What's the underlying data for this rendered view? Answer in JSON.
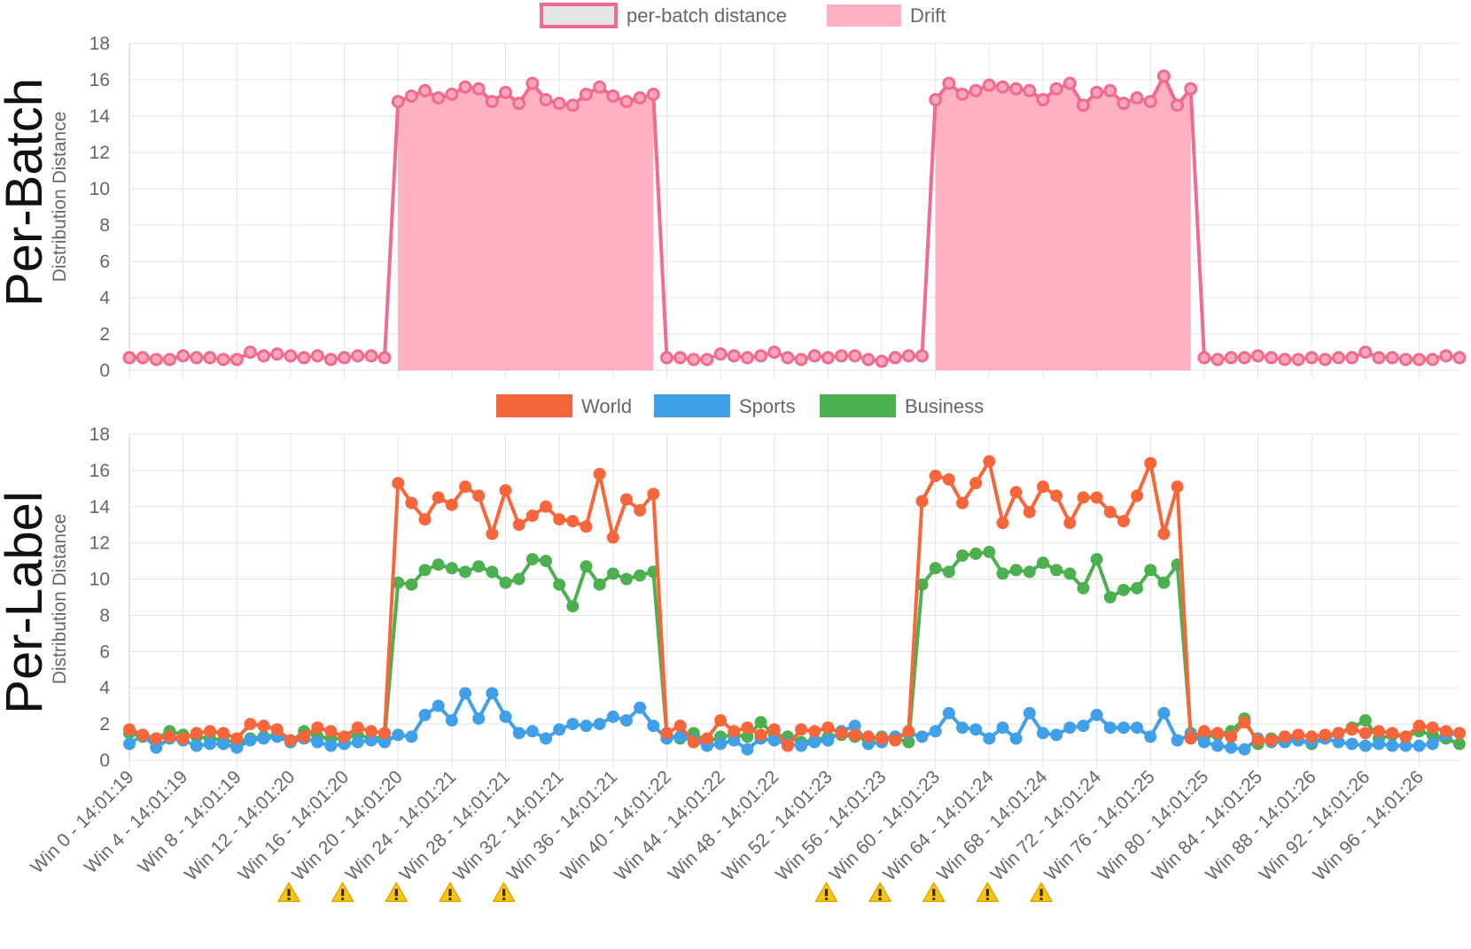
{
  "colors": {
    "distance_line": "#f06b8e",
    "drift_fill": "#ffb1c4",
    "distance_legend_fill": "#e6e6e6",
    "world": "#f7663a",
    "sports": "#3fa0e8",
    "business": "#4caf50",
    "warning": "#f5c518"
  },
  "icons": {
    "warning": "warning-icon"
  },
  "chart_data": [
    {
      "type": "line",
      "title": "",
      "side_label": "Per-Batch",
      "ylabel": "Distribution Distance",
      "ylim": [
        0,
        18
      ],
      "yticks": [
        0,
        2,
        4,
        6,
        8,
        10,
        12,
        14,
        16,
        18
      ],
      "legend_position": "top-center",
      "grid": true,
      "series": [
        {
          "name": "per-batch distance",
          "values": [
            0.7,
            0.7,
            0.6,
            0.6,
            0.8,
            0.7,
            0.7,
            0.6,
            0.6,
            1.0,
            0.8,
            0.9,
            0.8,
            0.7,
            0.8,
            0.6,
            0.7,
            0.8,
            0.8,
            0.7,
            14.8,
            15.1,
            15.4,
            15.0,
            15.2,
            15.6,
            15.5,
            14.8,
            15.3,
            14.7,
            15.8,
            14.9,
            14.7,
            14.6,
            15.2,
            15.6,
            15.1,
            14.8,
            15.0,
            15.2,
            0.7,
            0.7,
            0.6,
            0.6,
            0.9,
            0.8,
            0.7,
            0.8,
            1.0,
            0.7,
            0.6,
            0.8,
            0.7,
            0.8,
            0.8,
            0.6,
            0.5,
            0.7,
            0.8,
            0.8,
            14.9,
            15.8,
            15.2,
            15.4,
            15.7,
            15.6,
            15.5,
            15.4,
            14.9,
            15.5,
            15.8,
            14.6,
            15.3,
            15.4,
            14.7,
            15.0,
            14.8,
            16.2,
            14.6,
            15.5,
            0.7,
            0.6,
            0.7,
            0.7,
            0.8,
            0.7,
            0.6,
            0.6,
            0.7,
            0.6,
            0.7,
            0.7,
            1.0,
            0.7,
            0.7,
            0.6,
            0.6,
            0.6,
            0.8,
            0.7
          ]
        },
        {
          "name": "Drift",
          "ranges": [
            [
              20,
              39
            ],
            [
              60,
              79
            ]
          ]
        }
      ]
    },
    {
      "type": "line",
      "title": "",
      "side_label": "Per-Label",
      "ylabel": "Distribution Distance",
      "ylim": [
        0,
        18
      ],
      "yticks": [
        0,
        2,
        4,
        6,
        8,
        10,
        12,
        14,
        16,
        18
      ],
      "legend_position": "top-center",
      "grid": true,
      "x_tick_labels": [
        "Win 0 - 14:01:19",
        "Win 4 - 14:01:19",
        "Win 8 - 14:01:19",
        "Win 12 - 14:01:20",
        "Win 16 - 14:01:20",
        "Win 20 - 14:01:20",
        "Win 24 - 14:01:21",
        "Win 28 - 14:01:21",
        "Win 32 - 14:01:21",
        "Win 36 - 14:01:21",
        "Win 40 - 14:01:22",
        "Win 44 - 14:01:22",
        "Win 48 - 14:01:22",
        "Win 52 - 14:01:23",
        "Win 56 - 14:01:23",
        "Win 60 - 14:01:23",
        "Win 64 - 14:01:24",
        "Win 68 - 14:01:24",
        "Win 72 - 14:01:24",
        "Win 76 - 14:01:25",
        "Win 80 - 14:01:25",
        "Win 84 - 14:01:25",
        "Win 88 - 14:01:26",
        "Win 92 - 14:01:26",
        "Win 96 - 14:01:26"
      ],
      "warning_ticks": [
        "Win 20 - 14:01:20",
        "Win 24 - 14:01:21",
        "Win 28 - 14:01:21",
        "Win 32 - 14:01:21",
        "Win 36 - 14:01:21",
        "Win 60 - 14:01:23",
        "Win 64 - 14:01:24",
        "Win 68 - 14:01:24",
        "Win 72 - 14:01:24",
        "Win 76 - 14:01:25"
      ],
      "series": [
        {
          "name": "World",
          "values": [
            1.7,
            1.4,
            1.2,
            1.3,
            1.2,
            1.5,
            1.6,
            1.5,
            1.2,
            2.0,
            1.9,
            1.7,
            1.1,
            1.3,
            1.8,
            1.6,
            1.3,
            1.8,
            1.6,
            1.5,
            15.3,
            14.2,
            13.3,
            14.5,
            14.1,
            15.1,
            14.6,
            12.5,
            14.9,
            13.0,
            13.5,
            14.0,
            13.3,
            13.2,
            12.9,
            15.8,
            12.3,
            14.4,
            13.8,
            14.7,
            1.5,
            1.9,
            1.0,
            1.2,
            2.2,
            1.6,
            1.8,
            1.4,
            1.7,
            0.8,
            1.7,
            1.6,
            1.8,
            1.5,
            1.4,
            1.3,
            1.2,
            1.1,
            1.6,
            14.3,
            15.7,
            15.5,
            14.2,
            15.3,
            16.5,
            13.1,
            14.8,
            13.7,
            15.1,
            14.6,
            13.1,
            14.5,
            14.5,
            13.7,
            13.2,
            14.6,
            16.4,
            12.5,
            15.1,
            1.2,
            1.6,
            1.5,
            1.3,
            2.1,
            1.1,
            1.1,
            1.3,
            1.4,
            1.3,
            1.4,
            1.5,
            1.7,
            1.5,
            1.6,
            1.5,
            1.3,
            1.9,
            1.8,
            1.6,
            1.5
          ]
        },
        {
          "name": "Sports",
          "values": [
            0.9,
            1.4,
            0.7,
            1.2,
            1.1,
            0.8,
            0.9,
            0.9,
            0.7,
            1.1,
            1.2,
            1.3,
            1.0,
            1.2,
            1.0,
            0.8,
            0.9,
            1.0,
            1.1,
            1.0,
            1.4,
            1.3,
            2.5,
            3.0,
            2.2,
            3.7,
            2.3,
            3.7,
            2.4,
            1.5,
            1.6,
            1.2,
            1.7,
            2.0,
            1.9,
            2.0,
            2.4,
            2.2,
            2.9,
            1.9,
            1.2,
            1.3,
            1.1,
            0.8,
            0.9,
            1.1,
            0.6,
            1.2,
            1.1,
            0.9,
            0.8,
            1.0,
            1.1,
            1.6,
            1.9,
            0.9,
            1.0,
            1.3,
            1.5,
            1.3,
            1.6,
            2.6,
            1.8,
            1.7,
            1.2,
            1.8,
            1.2,
            2.6,
            1.5,
            1.4,
            1.8,
            1.9,
            2.5,
            1.8,
            1.8,
            1.8,
            1.3,
            2.6,
            1.1,
            1.4,
            1.0,
            0.8,
            0.7,
            0.6,
            1.2,
            1.0,
            1.0,
            1.1,
            1.0,
            1.2,
            1.0,
            0.9,
            0.8,
            0.9,
            0.8,
            0.8,
            0.8,
            0.9,
            1.4,
            1.5
          ]
        },
        {
          "name": "Business",
          "values": [
            1.5,
            1.3,
            1.2,
            1.6,
            1.4,
            1.3,
            1.2,
            1.1,
            1.0,
            1.2,
            1.3,
            1.4,
            1.0,
            1.6,
            1.3,
            1.2,
            1.2,
            1.4,
            1.2,
            1.3,
            9.8,
            9.7,
            10.5,
            10.8,
            10.6,
            10.4,
            10.7,
            10.4,
            9.8,
            10.0,
            11.1,
            11.0,
            9.7,
            8.5,
            10.7,
            9.7,
            10.3,
            10.0,
            10.2,
            10.4,
            1.4,
            1.2,
            1.5,
            1.0,
            1.3,
            1.4,
            1.3,
            2.1,
            1.4,
            1.3,
            1.0,
            1.1,
            1.3,
            1.4,
            1.3,
            1.1,
            1.3,
            1.2,
            1.0,
            9.7,
            10.6,
            10.4,
            11.3,
            11.4,
            11.5,
            10.3,
            10.5,
            10.4,
            10.9,
            10.5,
            10.3,
            9.5,
            11.1,
            9.0,
            9.4,
            9.5,
            10.5,
            9.8,
            10.8,
            1.5,
            1.3,
            1.4,
            1.6,
            2.3,
            0.9,
            1.2,
            1.3,
            1.1,
            0.9,
            1.2,
            1.5,
            1.8,
            2.2,
            1.2,
            1.4,
            1.3,
            1.6,
            1.4,
            1.2,
            0.9
          ]
        }
      ]
    }
  ]
}
